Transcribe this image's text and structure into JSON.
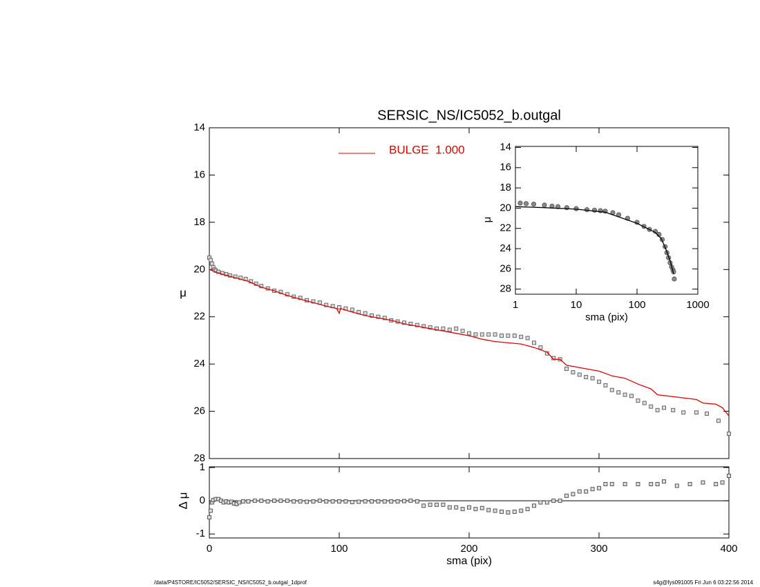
{
  "chart_data": [
    {
      "type": "line",
      "title": "SERSIC_NS/IC5052_b.outgal",
      "y_label": "μ",
      "xlim": [
        0,
        400
      ],
      "xticks": [
        0,
        100,
        200,
        300,
        400
      ],
      "x_tick_labels": false,
      "ylim": [
        14,
        28
      ],
      "yticks": [
        14,
        16,
        18,
        20,
        22,
        24,
        26,
        28
      ],
      "y_reversed": true,
      "legend": "top",
      "series": [
        {
          "style": "square",
          "color": "#666666",
          "x": [
            0,
            1,
            2,
            3,
            4,
            5,
            7,
            10,
            13,
            16,
            20,
            24,
            28,
            32,
            36,
            40,
            45,
            50,
            55,
            60,
            65,
            70,
            75,
            80,
            85,
            90,
            95,
            100,
            105,
            110,
            115,
            120,
            125,
            130,
            135,
            140,
            145,
            150,
            155,
            160,
            165,
            170,
            175,
            180,
            185,
            190,
            195,
            200,
            205,
            210,
            215,
            220,
            225,
            230,
            235,
            240,
            245,
            250,
            255,
            260,
            265,
            270,
            275,
            280,
            285,
            290,
            295,
            300,
            305,
            310,
            315,
            320,
            325,
            330,
            335,
            340,
            345,
            350,
            357,
            365,
            375,
            383,
            392,
            400
          ],
          "values": [
            19.5,
            19.6,
            19.75,
            19.9,
            20.0,
            20.05,
            20.1,
            20.15,
            20.2,
            20.25,
            20.3,
            20.35,
            20.4,
            20.5,
            20.6,
            20.7,
            20.8,
            20.9,
            20.95,
            21.05,
            21.15,
            21.2,
            21.3,
            21.35,
            21.4,
            21.5,
            21.55,
            21.6,
            21.65,
            21.7,
            21.8,
            21.85,
            21.95,
            22.0,
            22.05,
            22.15,
            22.2,
            22.25,
            22.3,
            22.35,
            22.4,
            22.45,
            22.5,
            22.5,
            22.55,
            22.5,
            22.6,
            22.7,
            22.75,
            22.75,
            22.75,
            22.75,
            22.8,
            22.8,
            22.8,
            22.85,
            22.9,
            23.1,
            23.3,
            23.55,
            23.75,
            23.8,
            24.2,
            24.35,
            24.45,
            24.55,
            24.6,
            24.75,
            24.9,
            25.1,
            25.2,
            25.3,
            25.35,
            25.55,
            25.65,
            25.8,
            25.95,
            25.85,
            25.95,
            26.05,
            26.05,
            26.1,
            26.4,
            26.95
          ]
        },
        {
          "style": "line",
          "name": "BULGE  1.000",
          "color": "#e00000",
          "x": [
            0,
            5,
            10,
            20,
            30,
            40,
            50,
            60,
            70,
            80,
            90,
            98,
            100,
            101,
            110,
            120,
            130,
            140,
            150,
            160,
            170,
            180,
            190,
            200,
            210,
            220,
            230,
            240,
            250,
            260,
            265,
            270,
            275,
            290,
            300,
            310,
            320,
            330,
            340,
            345,
            360,
            375,
            380,
            390,
            395,
            400
          ],
          "values": [
            20.0,
            20.1,
            20.2,
            20.35,
            20.5,
            20.75,
            20.9,
            21.1,
            21.25,
            21.4,
            21.55,
            21.65,
            21.85,
            21.65,
            21.8,
            21.95,
            22.05,
            22.15,
            22.3,
            22.4,
            22.5,
            22.6,
            22.7,
            22.8,
            22.95,
            23.05,
            23.1,
            23.15,
            23.3,
            23.5,
            23.8,
            23.8,
            24.05,
            24.2,
            24.3,
            24.5,
            24.6,
            24.85,
            25.05,
            25.3,
            25.4,
            25.5,
            25.65,
            25.7,
            25.85,
            26.2
          ]
        }
      ]
    },
    {
      "type": "scatter",
      "x_label": "sma (pix)",
      "y_label": "Δ μ",
      "xlim": [
        0,
        400
      ],
      "xticks": [
        0,
        100,
        200,
        300,
        400
      ],
      "ylim": [
        -1.12,
        1.02
      ],
      "yticks": [
        -1,
        0,
        1
      ],
      "hline": 0,
      "series": [
        {
          "style": "square",
          "color": "#555555",
          "x": [
            0,
            1,
            2,
            3,
            5,
            7,
            9,
            11,
            13,
            15,
            17,
            19,
            21,
            23,
            26,
            30,
            35,
            40,
            45,
            50,
            55,
            60,
            65,
            70,
            75,
            80,
            85,
            90,
            95,
            100,
            105,
            110,
            115,
            120,
            125,
            130,
            135,
            140,
            145,
            150,
            155,
            160,
            165,
            170,
            175,
            180,
            185,
            190,
            195,
            200,
            205,
            210,
            215,
            220,
            225,
            230,
            235,
            240,
            245,
            250,
            255,
            260,
            265,
            270,
            275,
            280,
            285,
            290,
            295,
            300,
            305,
            310,
            320,
            330,
            340,
            345,
            350,
            360,
            370,
            380,
            390,
            395,
            400
          ],
          "values": [
            -0.5,
            -0.3,
            -0.05,
            0.02,
            0.05,
            0.05,
            0,
            -0.05,
            -0.02,
            -0.05,
            -0.03,
            -0.08,
            -0.1,
            -0.05,
            -0.02,
            -0.02,
            0,
            0,
            -0.02,
            0,
            0,
            0,
            -0.02,
            -0.02,
            -0.03,
            -0.02,
            0,
            -0.02,
            -0.02,
            -0.02,
            -0.02,
            -0.04,
            -0.03,
            -0.02,
            -0.02,
            -0.02,
            -0.02,
            -0.02,
            -0.02,
            -0.01,
            0,
            -0.02,
            -0.15,
            -0.12,
            -0.12,
            -0.12,
            -0.2,
            -0.2,
            -0.25,
            -0.2,
            -0.25,
            -0.22,
            -0.28,
            -0.3,
            -0.33,
            -0.35,
            -0.33,
            -0.3,
            -0.25,
            -0.15,
            -0.05,
            -0.05,
            0,
            0,
            0.15,
            0.2,
            0.28,
            0.28,
            0.35,
            0.38,
            0.5,
            0.5,
            0.5,
            0.5,
            0.5,
            0.5,
            0.58,
            0.45,
            0.5,
            0.55,
            0.5,
            0.55,
            0.75
          ]
        }
      ]
    },
    {
      "type": "line",
      "x_label": "sma (pix)",
      "y_label": "μ",
      "log_x": true,
      "xlim": [
        1,
        1000
      ],
      "xticks": [
        1,
        10,
        100,
        1000
      ],
      "ylim": [
        13.9,
        28.5
      ],
      "yticks": [
        14,
        16,
        18,
        20,
        22,
        24,
        26,
        28
      ],
      "y_reversed": true,
      "series": [
        {
          "style": "circle",
          "color": "#888888",
          "x": [
            1.2,
            1.5,
            2,
            3,
            4,
            5,
            7,
            10,
            15,
            20,
            25,
            30,
            40,
            50,
            70,
            100,
            130,
            160,
            200,
            230,
            260,
            290,
            310,
            330,
            350,
            370,
            390,
            400,
            410
          ],
          "values": [
            19.5,
            19.55,
            19.6,
            19.7,
            19.8,
            19.85,
            19.95,
            20.05,
            20.15,
            20.2,
            20.25,
            20.3,
            20.45,
            20.65,
            21.0,
            21.4,
            21.8,
            22.1,
            22.3,
            22.6,
            23.1,
            23.8,
            24.4,
            24.9,
            25.4,
            25.8,
            26.1,
            26.3,
            27.0
          ]
        },
        {
          "style": "line",
          "color": "#000000",
          "x": [
            1,
            3,
            10,
            30,
            100,
            200,
            250,
            300,
            350,
            400
          ],
          "values": [
            19.85,
            19.95,
            20.1,
            20.4,
            21.5,
            22.4,
            23.0,
            24.1,
            25.2,
            26.5
          ]
        }
      ]
    }
  ],
  "footer": {
    "left": "/data/P4STORE/IC5052/SERSIC_NS/IC5052_b.outgal_1dprof",
    "right": "s4g@fys091005  Fri Jun  6 03:22:56 2014"
  }
}
